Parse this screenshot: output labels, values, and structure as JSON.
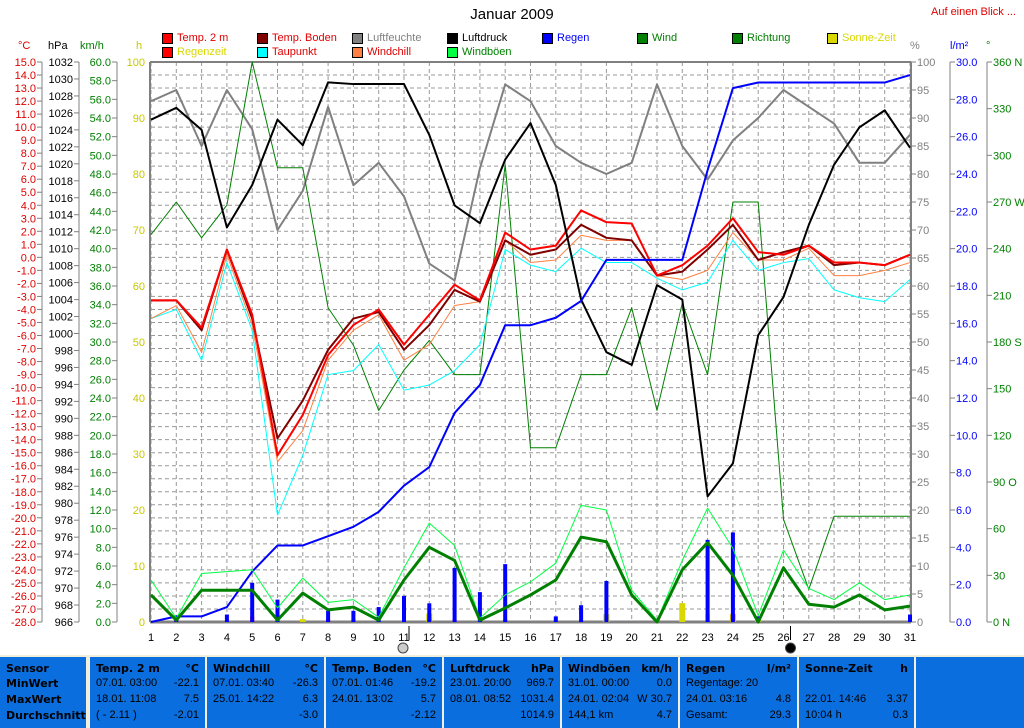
{
  "header": {
    "title": "Januar 2009",
    "glance_link": "Auf einen Blick ..."
  },
  "legend": [
    {
      "label": "Temp. 2 m",
      "color": "#ff0000",
      "text_color": "#e00000"
    },
    {
      "label": "Temp. Boden",
      "color": "#800000",
      "text_color": "#e00000"
    },
    {
      "label": "Luftfeuchte",
      "color": "#808080",
      "text_color": "#808080"
    },
    {
      "label": "Luftdruck",
      "color": "#000000",
      "text_color": "#000000"
    },
    {
      "label": "Regen",
      "color": "#0000ff",
      "text_color": "#0000ff"
    },
    {
      "label": "Wind",
      "color": "#008000",
      "text_color": "#008000"
    },
    {
      "label": "Richtung",
      "color": "#008000",
      "text_color": "#008000"
    },
    {
      "label": "Sonne-Zeit",
      "color": "#d8d800",
      "text_color": "#d8d800"
    },
    {
      "label": "Regenzeit",
      "color": "#ff0000",
      "text_color": "#d8d800"
    },
    {
      "label": "Taupunkt",
      "color": "#00ffff",
      "text_color": "#e00000"
    },
    {
      "label": "Windchill",
      "color": "#ff8040",
      "text_color": "#e00000"
    },
    {
      "label": "Windböen",
      "color": "#00ff40",
      "text_color": "#008000"
    }
  ],
  "axis_headers": {
    "temp": "°C",
    "pressure": "hPa",
    "wind": "km/h",
    "sun": "h",
    "humidity": "%",
    "rain": "l/m²",
    "direction": "°"
  },
  "chart_data": {
    "type": "line",
    "title": "Januar 2009",
    "x": [
      1,
      2,
      3,
      4,
      5,
      6,
      7,
      8,
      9,
      10,
      11,
      12,
      13,
      14,
      15,
      16,
      17,
      18,
      19,
      20,
      21,
      22,
      23,
      24,
      25,
      26,
      27,
      28,
      29,
      30,
      31
    ],
    "axes": {
      "temp": {
        "min": -28,
        "max": 15,
        "step": 1,
        "decimals": 1,
        "color": "#e00000"
      },
      "pressure": {
        "min": 966,
        "max": 1032,
        "step": 2,
        "decimals": 0,
        "color": "#000000"
      },
      "wind": {
        "min": 0,
        "max": 60,
        "step": 2,
        "decimals": 1,
        "color": "#008000"
      },
      "sun": {
        "min": 0,
        "max": 100,
        "step": 10,
        "decimals": 0,
        "color": "#d8d800"
      },
      "humidity": {
        "min": 0,
        "max": 100,
        "step": 5,
        "decimals": 0,
        "color": "#808080"
      },
      "rain": {
        "min": 0,
        "max": 30,
        "step": 2,
        "decimals": 1,
        "color": "#0000ff"
      },
      "direction": {
        "min": 0,
        "max": 360,
        "ticks": [
          "0 N",
          "30",
          "60",
          "90 O",
          "120",
          "150",
          "180 S",
          "210",
          "240",
          "270 W",
          "300",
          "330",
          "360 N"
        ],
        "color": "#008000"
      }
    },
    "series": [
      {
        "name": "Luftfeuchte",
        "axis": "humidity",
        "color": "#808080",
        "width": 2,
        "values": [
          93,
          95,
          85,
          95,
          88,
          70,
          77,
          92,
          78,
          82,
          76,
          64,
          61,
          81,
          96,
          93,
          85,
          82,
          80,
          82,
          96,
          85,
          79,
          86,
          90,
          95,
          92,
          89,
          82,
          82,
          87
        ]
      },
      {
        "name": "Richtung",
        "axis": "direction",
        "color": "#008000",
        "width": 1,
        "values": [
          249,
          270,
          247,
          268,
          360,
          292,
          292,
          202,
          178,
          136,
          162,
          181,
          159,
          159,
          294,
          112,
          112,
          159,
          159,
          202,
          136,
          205,
          159,
          270,
          270,
          66,
          21,
          68,
          68,
          68,
          68
        ]
      },
      {
        "name": "Taupunkt",
        "axis": "temp",
        "color": "#00ffff",
        "width": 1,
        "values": [
          -4.7,
          -4.0,
          -7.9,
          -0.4,
          -5.6,
          -19.8,
          -15.2,
          -9.0,
          -8.7,
          -6.7,
          -10.2,
          -9.8,
          -8.7,
          -6.7,
          0.6,
          -0.6,
          -1.1,
          0.7,
          -0.4,
          -0.4,
          -1.6,
          -2.5,
          -1.9,
          1.3,
          -1.0,
          -0.4,
          -0.1,
          -2.5,
          -3.1,
          -3.4,
          -1.7
        ]
      },
      {
        "name": "Windchill",
        "axis": "temp",
        "color": "#ff8040",
        "width": 1,
        "values": [
          -4.7,
          -3.7,
          -7.3,
          0.2,
          -5.2,
          -15.7,
          -13.3,
          -7.9,
          -5.6,
          -4.4,
          -7.9,
          -6.7,
          -3.7,
          -3.4,
          1.3,
          -0.4,
          -0.2,
          1.7,
          1.3,
          1.3,
          -1.4,
          -1.7,
          -1.0,
          1.9,
          -0.2,
          -0.2,
          0.7,
          -1.4,
          -1.4,
          -1.0,
          -0.4
        ]
      },
      {
        "name": "Temp. Boden",
        "axis": "temp",
        "color": "#800000",
        "width": 2,
        "values": [
          -3.3,
          -3.3,
          -5.6,
          0.6,
          -4.7,
          -13.9,
          -11.0,
          -7.1,
          -4.7,
          -4.2,
          -7.1,
          -5.2,
          -2.5,
          -3.4,
          1.3,
          0.2,
          0.6,
          2.5,
          1.5,
          1.3,
          -1.4,
          -1.1,
          0.6,
          2.5,
          -0.2,
          0.4,
          0.9,
          -0.6,
          -0.4,
          -0.6,
          0.2
        ]
      },
      {
        "name": "Temp. 2 m",
        "axis": "temp",
        "color": "#ff0000",
        "width": 2,
        "values": [
          -3.3,
          -3.3,
          -5.4,
          0.6,
          -4.4,
          -15.2,
          -12.1,
          -7.5,
          -5.2,
          -4.0,
          -6.7,
          -4.4,
          -2.1,
          -3.3,
          1.9,
          0.6,
          0.9,
          3.6,
          2.7,
          2.6,
          -1.4,
          -0.6,
          0.9,
          3.0,
          0.4,
          0.2,
          0.9,
          -0.4,
          -0.4,
          -0.6,
          0.2
        ]
      },
      {
        "name": "Luftdruck",
        "axis": "pressure",
        "color": "#000000",
        "width": 2,
        "values": [
          1025.2,
          1026.6,
          1024.0,
          1012.5,
          1017.5,
          1025.2,
          1022.2,
          1029.6,
          1029.4,
          1029.4,
          1029.4,
          1023.4,
          1015.1,
          1013.0,
          1020.5,
          1024.8,
          1017.5,
          1004.0,
          997.8,
          996.3,
          1005.7,
          1004.0,
          980.8,
          984.7,
          999.8,
          1004.3,
          1012.8,
          1019.9,
          1024.3,
          1026.3,
          1021.9
        ]
      },
      {
        "name": "Regen",
        "axis": "rain",
        "color": "#0000ff",
        "width": 2,
        "values": [
          0,
          0.3,
          0.3,
          0.8,
          2.7,
          4.1,
          4.1,
          4.6,
          5.1,
          5.9,
          7.3,
          8.3,
          11.2,
          12.7,
          15.9,
          15.9,
          16.3,
          17.2,
          19.4,
          19.4,
          19.4,
          19.4,
          24.2,
          28.6,
          28.9,
          28.9,
          28.9,
          28.9,
          28.9,
          28.9,
          29.3
        ]
      },
      {
        "name": "Windböen",
        "axis": "wind",
        "color": "#00ff40",
        "width": 1,
        "values": [
          4.5,
          0.4,
          5.2,
          5.4,
          5.6,
          1.5,
          4.7,
          2.1,
          2.4,
          0.5,
          5.8,
          10.6,
          8.2,
          0.4,
          2.9,
          4.3,
          6.3,
          12.5,
          12.0,
          3.4,
          0.2,
          6.6,
          12.2,
          7.9,
          0.7,
          7.7,
          3.6,
          2.4,
          4.2,
          2.4,
          2.9
        ]
      },
      {
        "name": "Wind",
        "axis": "wind",
        "color": "#008000",
        "width": 3,
        "values": [
          2.9,
          0.2,
          3.4,
          3.4,
          3.4,
          0.2,
          3.1,
          1.3,
          1.6,
          0.2,
          4.5,
          8.0,
          6.6,
          0.2,
          1.5,
          2.9,
          4.5,
          9.1,
          8.6,
          2.9,
          0,
          5.6,
          8.5,
          5.0,
          0,
          5.8,
          1.9,
          1.6,
          2.9,
          1.3,
          1.7
        ]
      }
    ],
    "bars": [
      {
        "name": "Sonne-Zeit",
        "axis": "sun",
        "color": "#d8d800",
        "values": [
          0,
          0,
          0,
          0,
          0,
          0,
          0.5,
          0,
          0,
          0,
          0,
          1.5,
          0,
          0,
          0,
          0,
          0,
          0,
          1.4,
          0,
          0,
          3.37,
          0,
          1.4,
          1.0,
          0,
          0,
          0,
          0,
          0,
          0
        ]
      },
      {
        "name": "Regenzeit",
        "axis": "sun",
        "color": "#ff0000",
        "values": [
          0,
          0.5,
          0,
          0,
          1.0,
          0.5,
          0,
          0.5,
          0.5,
          0,
          0.5,
          0.5,
          0.5,
          0,
          0.5,
          0,
          0,
          0,
          0,
          0,
          0,
          0,
          1.5,
          1.5,
          0,
          0,
          0,
          0,
          0,
          0,
          0
        ]
      },
      {
        "name": "Regen täglich",
        "axis": "rain",
        "color": "#0000ff",
        "values": [
          0,
          0.3,
          0,
          0.4,
          2.1,
          1.2,
          0,
          0.6,
          0.6,
          0.8,
          1.4,
          1.0,
          2.9,
          1.6,
          3.1,
          0,
          0.3,
          0.9,
          2.2,
          0,
          0,
          0,
          4.4,
          4.8,
          0.3,
          0,
          0,
          0,
          0,
          0,
          0.4
        ]
      }
    ],
    "moon_phases": [
      {
        "day": 11,
        "phase": "full"
      },
      {
        "day": 26,
        "phase": "new"
      }
    ]
  },
  "table": {
    "columns": [
      {
        "title": "Sensor",
        "unit": "",
        "rows": [
          [
            "MinWert",
            ""
          ],
          [
            "MaxWert",
            ""
          ],
          [
            "Durchschnitt",
            ""
          ]
        ]
      },
      {
        "title": "Temp. 2 m",
        "unit": "°C",
        "rows": [
          [
            "07.01.  03:00",
            "-22.1"
          ],
          [
            "18.01.  11:08",
            "7.5"
          ],
          [
            "( - 2.11 )",
            "-2.01"
          ]
        ]
      },
      {
        "title": "Windchill",
        "unit": "°C",
        "rows": [
          [
            "07.01.  03:40",
            "-26.3"
          ],
          [
            "25.01.  14:22",
            "6.3"
          ],
          [
            "",
            "-3.0"
          ]
        ]
      },
      {
        "title": "Temp. Boden",
        "unit": "°C",
        "rows": [
          [
            "07.01.  01:46",
            "-19.2"
          ],
          [
            "24.01.  13:02",
            "5.7"
          ],
          [
            "",
            "-2.12"
          ]
        ]
      },
      {
        "title": "Luftdruck",
        "unit": "hPa",
        "rows": [
          [
            "23.01.  20:00",
            "969.7"
          ],
          [
            "08.01.  08:52",
            "1031.4"
          ],
          [
            "",
            "1014.9"
          ]
        ]
      },
      {
        "title": "Windböen",
        "unit": "km/h",
        "rows": [
          [
            "31.01.  00:00",
            "0.0"
          ],
          [
            "24.01.  02:04",
            "W 30.7"
          ],
          [
            "144,1 km",
            "4.7"
          ]
        ]
      },
      {
        "title": "Regen",
        "unit": "l/m²",
        "rows": [
          [
            "Regentage: 20",
            ""
          ],
          [
            "24.01.  03:16",
            "4.8"
          ],
          [
            "Gesamt:",
            "29.3"
          ]
        ]
      },
      {
        "title": "Sonne-Zeit",
        "unit": "h",
        "rows": [
          [
            "",
            ""
          ],
          [
            "22.01.  14:46",
            "3.37"
          ],
          [
            "10:04 h",
            "0.3"
          ]
        ]
      }
    ]
  }
}
